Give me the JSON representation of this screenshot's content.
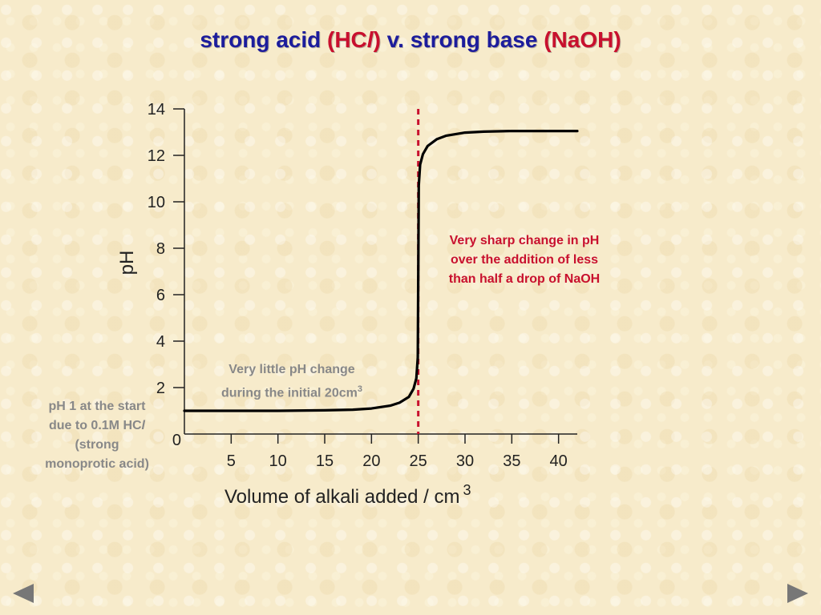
{
  "slide": {
    "title_part1": "strong acid ",
    "title_part2": "(HC",
    "title_part3": "l",
    "title_part4": ")",
    "title_part5": " v. strong base ",
    "title_part6": "(NaOH)"
  },
  "colors": {
    "title_blue": "#1c1c9c",
    "title_red": "#c8102e",
    "annotation_red": "#c8102e",
    "annotation_grey": "#888888",
    "curve": "#000000",
    "equivalence_line": "#c8102e",
    "nav_arrow": "#777777"
  },
  "annotations": {
    "sharp_line1": "Very sharp change in pH",
    "sharp_line2": "over the addition of less",
    "sharp_line3": "than half a drop of NaOH",
    "little_line1": "Very little pH change",
    "little_line2": "during the initial 20cm",
    "little_sup": "3",
    "start_line1": "pH 1 at the start",
    "start_line2": "due to 0.1M HC",
    "start_line2_italic": "l",
    "start_line3": "(strong",
    "start_line4": "monoprotic acid)"
  },
  "chart_data": {
    "type": "line",
    "xlabel": "Volume of alkali added / cm",
    "xlabel_sup": "3",
    "ylabel": "pH",
    "xlim": [
      0,
      42
    ],
    "ylim": [
      0,
      14
    ],
    "x_ticks": [
      5,
      10,
      15,
      20,
      25,
      30,
      35,
      40
    ],
    "y_ticks": [
      0,
      2,
      4,
      6,
      8,
      10,
      12,
      14
    ],
    "grid": false,
    "series": [
      {
        "x": [
          0,
          5,
          10,
          15,
          18,
          20,
          22,
          23,
          24,
          24.5,
          24.8,
          24.95,
          25,
          25.05,
          25.2,
          25.5,
          26,
          27,
          28,
          30,
          32,
          35,
          40,
          42
        ],
        "y": [
          1.0,
          1.0,
          1.0,
          1.02,
          1.05,
          1.1,
          1.22,
          1.35,
          1.6,
          1.95,
          2.4,
          3.3,
          7.0,
          10.7,
          11.6,
          12.05,
          12.4,
          12.7,
          12.85,
          12.98,
          13.02,
          13.05,
          13.05,
          13.05
        ]
      }
    ],
    "vertical_marker_x": 25
  },
  "nav": {
    "prev_icon": "left-triangle-icon",
    "next_icon": "right-triangle-icon"
  }
}
